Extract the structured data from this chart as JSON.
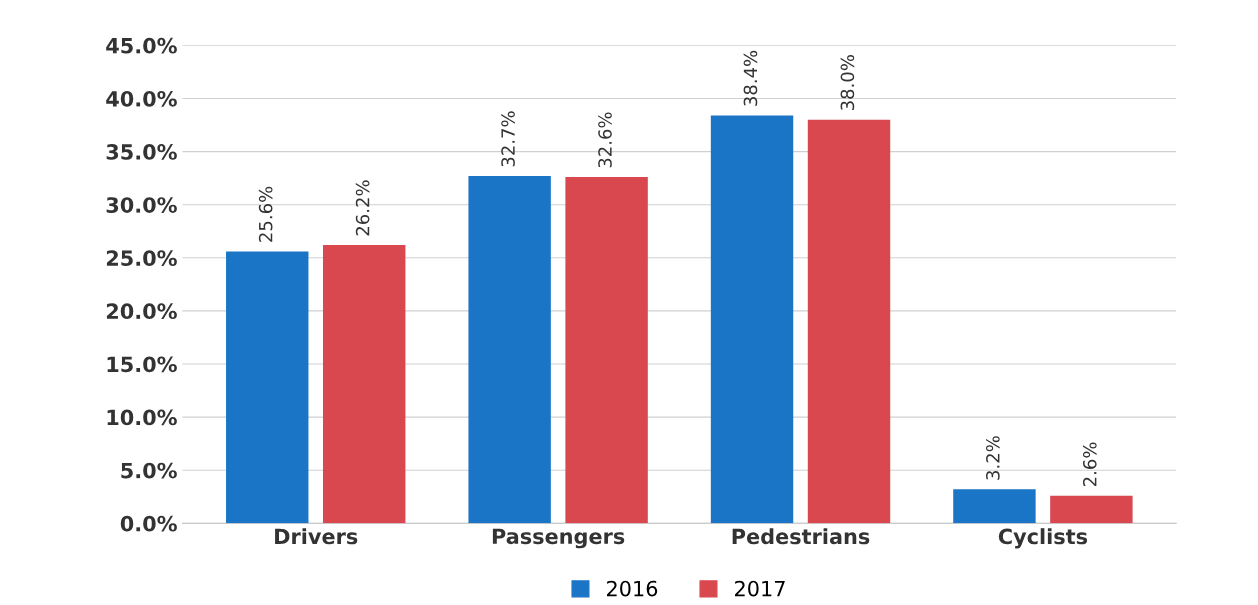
{
  "chart_data": {
    "type": "bar",
    "categories": [
      "Drivers",
      "Passengers",
      "Pedestrians",
      "Cyclists"
    ],
    "series": [
      {
        "name": "2016",
        "color": "#1b75c6",
        "values": [
          25.6,
          32.7,
          38.4,
          3.2
        ],
        "value_labels": [
          "25.6%",
          "32.7%",
          "38.4%",
          "3.2%"
        ]
      },
      {
        "name": "2017",
        "color": "#d9474f",
        "values": [
          26.2,
          32.6,
          38.0,
          2.6
        ],
        "value_labels": [
          "26.2%",
          "32.6%",
          "38.0%",
          "2.6%"
        ]
      }
    ],
    "ylim": [
      0,
      45
    ],
    "yticks": [
      {
        "value": 0,
        "label": "0.0%"
      },
      {
        "value": 5,
        "label": "5.0%"
      },
      {
        "value": 10,
        "label": "10.0%"
      },
      {
        "value": 15,
        "label": "15.0%"
      },
      {
        "value": 20,
        "label": "20.0%"
      },
      {
        "value": 25,
        "label": "25.0%"
      },
      {
        "value": 30,
        "label": "30.0%"
      },
      {
        "value": 35,
        "label": "35.0%"
      },
      {
        "value": 40,
        "label": "40.0%"
      },
      {
        "value": 45,
        "label": "45.0%"
      }
    ],
    "grid": "y",
    "legend": "bottom"
  }
}
